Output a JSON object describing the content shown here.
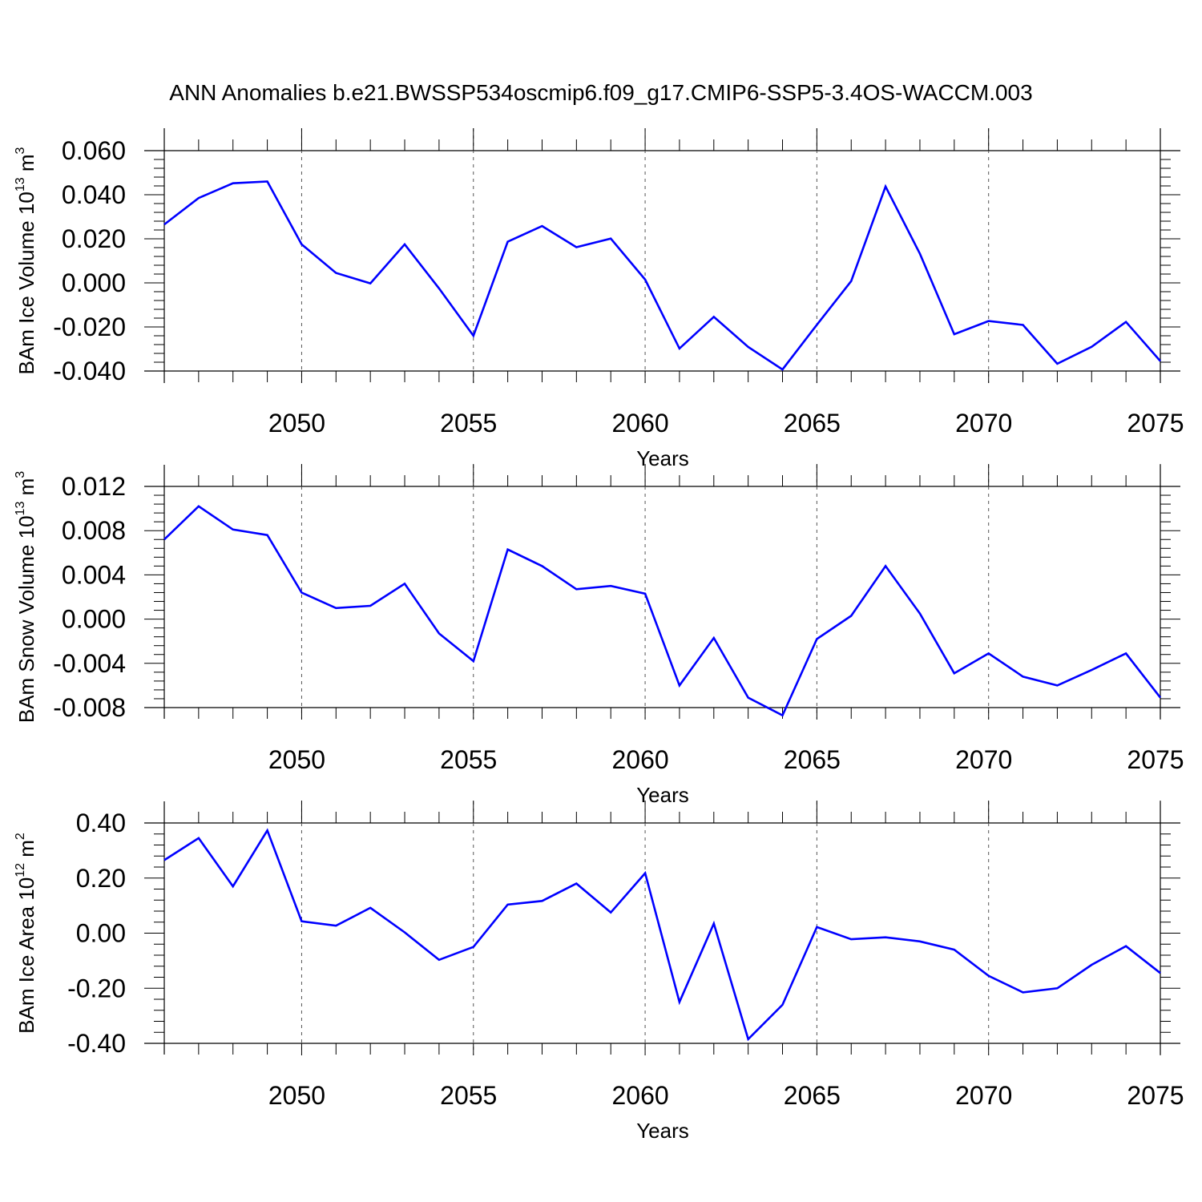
{
  "title": "ANN Anomalies b.e21.BWSSP534oscmip6.f09_g17.CMIP6-SSP5-3.4OS-WACCM.003",
  "colors": {
    "line": "#0000ff",
    "axis": "#000000",
    "grid": "#555555"
  },
  "chart_data": [
    {
      "type": "line",
      "ylabel": "BAm Ice Volume 10",
      "ylabel_exp": "13",
      "ylabel_unit": " m",
      "ylabel_unit_exp": "3",
      "xlabel": "Years",
      "xlim": [
        2046,
        2075
      ],
      "ylim": [
        -0.04,
        0.065
      ],
      "yticks": [
        -0.04,
        -0.02,
        0.0,
        0.02,
        0.04,
        0.06
      ],
      "ytick_labels": [
        "-0.040",
        "-0.020",
        "0.000",
        "0.020",
        "0.040",
        "0.060"
      ],
      "xticks": [
        2050,
        2055,
        2060,
        2065,
        2070,
        2075
      ],
      "xtick_labels": [
        "2050",
        "2055",
        "2060",
        "2065",
        "2070",
        "2075"
      ],
      "grid_x": [
        2050,
        2055,
        2060,
        2065,
        2070
      ],
      "x": [
        2046,
        2047,
        2048,
        2049,
        2050,
        2051,
        2052,
        2053,
        2054,
        2055,
        2056,
        2057,
        2058,
        2059,
        2060,
        2061,
        2062,
        2063,
        2064,
        2065,
        2066,
        2067,
        2068,
        2069,
        2070,
        2071,
        2072,
        2073,
        2074,
        2075
      ],
      "series": [
        {
          "values": [
            0.0265,
            0.0385,
            0.0452,
            0.046,
            0.0175,
            0.0045,
            -0.0002,
            0.0175,
            -0.0025,
            -0.024,
            0.0187,
            0.0258,
            0.0162,
            0.0201,
            0.0015,
            -0.0298,
            -0.0154,
            -0.0291,
            -0.0393,
            -0.019,
            0.0008,
            0.0437,
            0.0132,
            -0.0233,
            -0.0173,
            -0.0191,
            -0.0367,
            -0.029,
            -0.0177,
            -0.0355
          ]
        }
      ]
    },
    {
      "type": "line",
      "ylabel": "BAm Snow Volume 10",
      "ylabel_exp": "13",
      "ylabel_unit": " m",
      "ylabel_unit_exp": "3",
      "xlabel": "Years",
      "xlim": [
        2046,
        2075
      ],
      "ylim": [
        -0.009,
        0.013
      ],
      "yticks": [
        -0.008,
        -0.004,
        0.0,
        0.004,
        0.008,
        0.012
      ],
      "ytick_labels": [
        "-0.008",
        "-0.004",
        "0.000",
        "0.004",
        "0.008",
        "0.012"
      ],
      "xticks": [
        2050,
        2055,
        2060,
        2065,
        2070,
        2075
      ],
      "xtick_labels": [
        "2050",
        "2055",
        "2060",
        "2065",
        "2070",
        "2075"
      ],
      "grid_x": [
        2050,
        2055,
        2060,
        2065,
        2070
      ],
      "x": [
        2046,
        2047,
        2048,
        2049,
        2050,
        2051,
        2052,
        2053,
        2054,
        2055,
        2056,
        2057,
        2058,
        2059,
        2060,
        2061,
        2062,
        2063,
        2064,
        2065,
        2066,
        2067,
        2068,
        2069,
        2070,
        2071,
        2072,
        2073,
        2074,
        2075
      ],
      "series": [
        {
          "values": [
            0.0072,
            0.0102,
            0.0081,
            0.0076,
            0.0024,
            0.001,
            0.0012,
            0.0032,
            -0.0013,
            -0.0038,
            0.0063,
            0.0048,
            0.0027,
            0.003,
            0.0023,
            -0.006,
            -0.0017,
            -0.0071,
            -0.0087,
            -0.0018,
            0.0003,
            0.0048,
            0.0005,
            -0.0049,
            -0.0031,
            -0.0052,
            -0.006,
            -0.0046,
            -0.0031,
            -0.0071
          ]
        }
      ]
    },
    {
      "type": "line",
      "ylabel": "BAm Ice Area 10",
      "ylabel_exp": "12",
      "ylabel_unit": " m",
      "ylabel_unit_exp": "2",
      "xlabel": "Years",
      "xlim": [
        2046,
        2075
      ],
      "ylim": [
        -0.4,
        0.4
      ],
      "yticks": [
        -0.4,
        -0.2,
        0.0,
        0.2,
        0.4
      ],
      "ytick_labels": [
        "-0.40",
        "-0.20",
        "0.00",
        "0.20",
        "0.40"
      ],
      "xticks": [
        2050,
        2055,
        2060,
        2065,
        2070,
        2075
      ],
      "xtick_labels": [
        "2050",
        "2055",
        "2060",
        "2065",
        "2070",
        "2075"
      ],
      "grid_x": [
        2050,
        2055,
        2060,
        2065,
        2070
      ],
      "x": [
        2046,
        2047,
        2048,
        2049,
        2050,
        2051,
        2052,
        2053,
        2054,
        2055,
        2056,
        2057,
        2058,
        2059,
        2060,
        2061,
        2062,
        2063,
        2064,
        2065,
        2066,
        2067,
        2068,
        2069,
        2070,
        2071,
        2072,
        2073,
        2074,
        2075
      ],
      "series": [
        {
          "values": [
            0.265,
            0.345,
            0.17,
            0.373,
            0.043,
            0.027,
            0.092,
            0.003,
            -0.097,
            -0.05,
            0.104,
            0.117,
            0.18,
            0.075,
            0.218,
            -0.25,
            0.035,
            -0.385,
            -0.26,
            0.022,
            -0.022,
            -0.015,
            -0.03,
            -0.06,
            -0.155,
            -0.215,
            -0.2,
            -0.115,
            -0.047,
            -0.145
          ]
        }
      ]
    }
  ]
}
